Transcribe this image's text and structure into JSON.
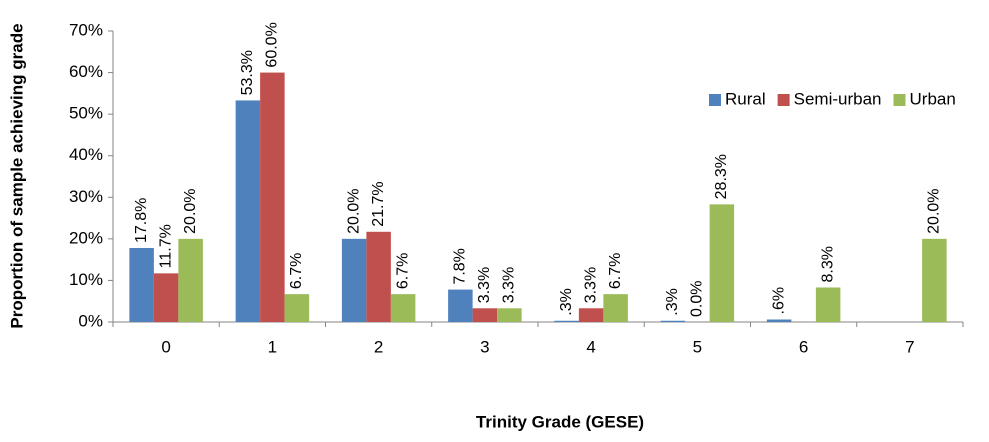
{
  "chart_data": {
    "type": "bar",
    "xlabel": "Trinity Grade (GESE)",
    "ylabel": "Proportion of sample achieving grade",
    "categories": [
      "0",
      "1",
      "2",
      "3",
      "4",
      "5",
      "6",
      "7"
    ],
    "series": [
      {
        "name": "Rural",
        "color": "#4f81bd",
        "values": [
          17.8,
          53.3,
          20.0,
          7.8,
          0.3,
          0.3,
          0.6,
          null
        ],
        "value_labels": [
          "17.8%",
          "53.3%",
          "20.0%",
          "7.8%",
          ".3%",
          ".3%",
          ".6%",
          null
        ]
      },
      {
        "name": "Semi-urban",
        "color": "#c0504d",
        "values": [
          11.7,
          60.0,
          21.7,
          3.3,
          3.3,
          0.0,
          null,
          null
        ],
        "value_labels": [
          "11.7%",
          "60.0%",
          "21.7%",
          "3.3%",
          "3.3%",
          "0.0%",
          null,
          null
        ]
      },
      {
        "name": "Urban",
        "color": "#9bbb59",
        "values": [
          20.0,
          6.7,
          6.7,
          3.3,
          6.7,
          28.3,
          8.3,
          20.0
        ],
        "value_labels": [
          "20.0%",
          "6.7%",
          "6.7%",
          "3.3%",
          "6.7%",
          "28.3%",
          "8.3%",
          "20.0%"
        ]
      }
    ],
    "ylim": [
      0,
      70
    ],
    "yticks": [
      {
        "value": 0,
        "label": "0%"
      },
      {
        "value": 10,
        "label": "10%"
      },
      {
        "value": 20,
        "label": "20%"
      },
      {
        "value": 30,
        "label": "30%"
      },
      {
        "value": 40,
        "label": "40%"
      },
      {
        "value": 50,
        "label": "50%"
      },
      {
        "value": 60,
        "label": "60%"
      },
      {
        "value": 70,
        "label": "70%"
      }
    ],
    "legend": "upper right"
  }
}
